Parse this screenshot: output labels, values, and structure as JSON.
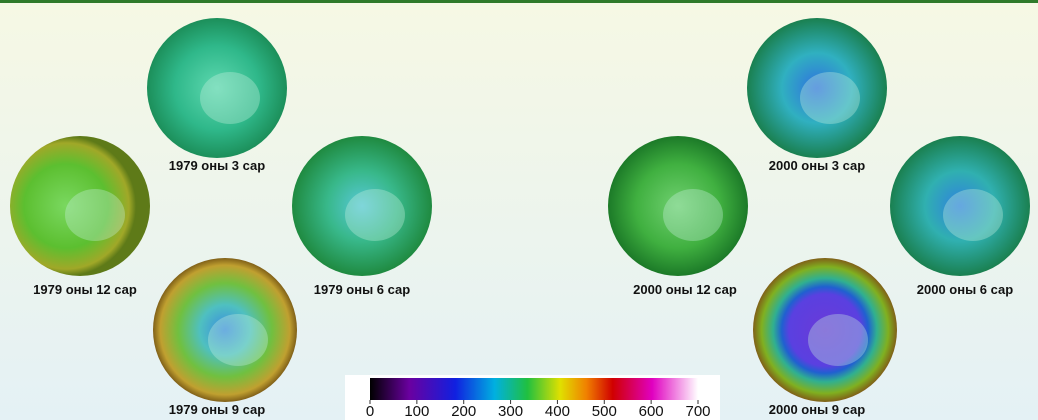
{
  "globes": [
    {
      "label": "1979 оны 3 сар"
    },
    {
      "label": "1979 оны 12 сар"
    },
    {
      "label": "1979 оны 6 сар"
    },
    {
      "label": "1979 оны 9 сар"
    },
    {
      "label": "2000 оны 3 сар"
    },
    {
      "label": "2000 оны 12 сар"
    },
    {
      "label": "2000 оны 6 сар"
    },
    {
      "label": "2000 оны 9 сар"
    }
  ],
  "colorbar": {
    "lim": [
      0,
      700
    ],
    "ticks": [
      0,
      100,
      200,
      300,
      400,
      500,
      600,
      700
    ]
  }
}
